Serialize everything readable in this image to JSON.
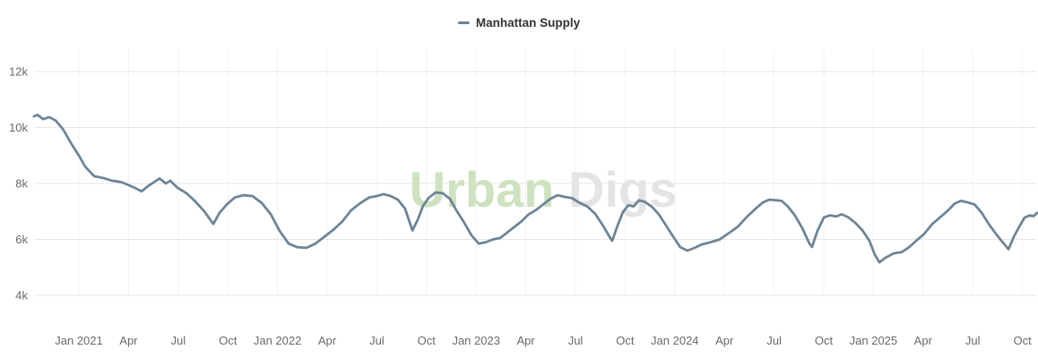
{
  "legend": {
    "label": "Manhattan Supply"
  },
  "watermark": {
    "primary": "Urban",
    "secondary": "Digs"
  },
  "colors": {
    "series": "#6d8496",
    "legend_text": "#333333",
    "axis_label": "#66696e",
    "grid_horizontal": "#e6e6e6",
    "grid_vertical": "#f2f2f2",
    "watermark_primary": "#cde2bf",
    "watermark_secondary": "#e4e4e4",
    "background": "#ffffff"
  },
  "chart_data": {
    "type": "line",
    "title": "",
    "legend_position": "top-center",
    "unit": "listings (k = thousands)",
    "x_axis": {
      "ticks": [
        {
          "label": "Jan 2021",
          "year": 2021.0
        },
        {
          "label": "Apr",
          "year": 2021.25
        },
        {
          "label": "Jul",
          "year": 2021.5
        },
        {
          "label": "Oct",
          "year": 2021.75
        },
        {
          "label": "Jan 2022",
          "year": 2022.0
        },
        {
          "label": "Apr",
          "year": 2022.25
        },
        {
          "label": "Jul",
          "year": 2022.5
        },
        {
          "label": "Oct",
          "year": 2022.75
        },
        {
          "label": "Jan 2023",
          "year": 2023.0
        },
        {
          "label": "Apr",
          "year": 2023.25
        },
        {
          "label": "Jul",
          "year": 2023.5
        },
        {
          "label": "Oct",
          "year": 2023.75
        },
        {
          "label": "Jan 2024",
          "year": 2024.0
        },
        {
          "label": "Apr",
          "year": 2024.25
        },
        {
          "label": "Jul",
          "year": 2024.5
        },
        {
          "label": "Oct",
          "year": 2024.75
        },
        {
          "label": "Jan 2025",
          "year": 2025.0
        },
        {
          "label": "Apr",
          "year": 2025.25
        },
        {
          "label": "Jul",
          "year": 2025.5
        },
        {
          "label": "Oct",
          "year": 2025.75
        }
      ],
      "range_years": [
        2020.774,
        2025.824
      ]
    },
    "y_axis": {
      "ticks": [
        {
          "label": "4k",
          "value": 4000
        },
        {
          "label": "6k",
          "value": 6000
        },
        {
          "label": "8k",
          "value": 8000
        },
        {
          "label": "10k",
          "value": 10000
        },
        {
          "label": "12k",
          "value": 12000
        }
      ],
      "range": [
        4000,
        12000
      ],
      "grid": true
    },
    "series": [
      {
        "name": "Manhattan Supply",
        "color": "#6d8496",
        "points": [
          [
            2020.774,
            10400
          ],
          [
            2020.792,
            10450
          ],
          [
            2020.82,
            10300
          ],
          [
            2020.851,
            10370
          ],
          [
            2020.883,
            10250
          ],
          [
            2020.919,
            9950
          ],
          [
            2020.964,
            9400
          ],
          [
            2021.0,
            9000
          ],
          [
            2021.032,
            8600
          ],
          [
            2021.077,
            8260
          ],
          [
            2021.122,
            8200
          ],
          [
            2021.167,
            8100
          ],
          [
            2021.212,
            8050
          ],
          [
            2021.248,
            7950
          ],
          [
            2021.28,
            7850
          ],
          [
            2021.316,
            7720
          ],
          [
            2021.347,
            7900
          ],
          [
            2021.379,
            8050
          ],
          [
            2021.406,
            8180
          ],
          [
            2021.438,
            8000
          ],
          [
            2021.46,
            8100
          ],
          [
            2021.496,
            7850
          ],
          [
            2021.542,
            7650
          ],
          [
            2021.587,
            7350
          ],
          [
            2021.632,
            7000
          ],
          [
            2021.677,
            6550
          ],
          [
            2021.708,
            6950
          ],
          [
            2021.745,
            7250
          ],
          [
            2021.785,
            7500
          ],
          [
            2021.83,
            7580
          ],
          [
            2021.875,
            7550
          ],
          [
            2021.921,
            7300
          ],
          [
            2021.966,
            6900
          ],
          [
            2022.011,
            6300
          ],
          [
            2022.056,
            5850
          ],
          [
            2022.101,
            5720
          ],
          [
            2022.146,
            5700
          ],
          [
            2022.191,
            5850
          ],
          [
            2022.237,
            6100
          ],
          [
            2022.282,
            6350
          ],
          [
            2022.327,
            6650
          ],
          [
            2022.372,
            7050
          ],
          [
            2022.417,
            7300
          ],
          [
            2022.462,
            7500
          ],
          [
            2022.498,
            7550
          ],
          [
            2022.534,
            7620
          ],
          [
            2022.57,
            7550
          ],
          [
            2022.606,
            7420
          ],
          [
            2022.642,
            7100
          ],
          [
            2022.679,
            6320
          ],
          [
            2022.706,
            6700
          ],
          [
            2022.733,
            7200
          ],
          [
            2022.76,
            7480
          ],
          [
            2022.796,
            7680
          ],
          [
            2022.832,
            7650
          ],
          [
            2022.868,
            7450
          ],
          [
            2022.904,
            7000
          ],
          [
            2022.94,
            6600
          ],
          [
            2022.976,
            6150
          ],
          [
            2023.013,
            5850
          ],
          [
            2023.049,
            5900
          ],
          [
            2023.085,
            6000
          ],
          [
            2023.121,
            6050
          ],
          [
            2023.157,
            6250
          ],
          [
            2023.193,
            6450
          ],
          [
            2023.229,
            6650
          ],
          [
            2023.265,
            6900
          ],
          [
            2023.301,
            7050
          ],
          [
            2023.337,
            7250
          ],
          [
            2023.373,
            7450
          ],
          [
            2023.41,
            7580
          ],
          [
            2023.446,
            7520
          ],
          [
            2023.482,
            7480
          ],
          [
            2023.518,
            7320
          ],
          [
            2023.559,
            7180
          ],
          [
            2023.599,
            6920
          ],
          [
            2023.64,
            6480
          ],
          [
            2023.671,
            6100
          ],
          [
            2023.685,
            5950
          ],
          [
            2023.712,
            6500
          ],
          [
            2023.739,
            6980
          ],
          [
            2023.766,
            7220
          ],
          [
            2023.793,
            7180
          ],
          [
            2023.82,
            7400
          ],
          [
            2023.847,
            7350
          ],
          [
            2023.883,
            7180
          ],
          [
            2023.919,
            6900
          ],
          [
            2023.956,
            6500
          ],
          [
            2023.992,
            6100
          ],
          [
            2024.028,
            5720
          ],
          [
            2024.064,
            5600
          ],
          [
            2024.1,
            5700
          ],
          [
            2024.136,
            5820
          ],
          [
            2024.181,
            5900
          ],
          [
            2024.226,
            6000
          ],
          [
            2024.271,
            6220
          ],
          [
            2024.317,
            6450
          ],
          [
            2024.362,
            6800
          ],
          [
            2024.407,
            7100
          ],
          [
            2024.443,
            7320
          ],
          [
            2024.475,
            7420
          ],
          [
            2024.511,
            7400
          ],
          [
            2024.538,
            7380
          ],
          [
            2024.569,
            7180
          ],
          [
            2024.605,
            6850
          ],
          [
            2024.642,
            6400
          ],
          [
            2024.678,
            5850
          ],
          [
            2024.691,
            5730
          ],
          [
            2024.718,
            6300
          ],
          [
            2024.75,
            6780
          ],
          [
            2024.782,
            6860
          ],
          [
            2024.813,
            6820
          ],
          [
            2024.84,
            6900
          ],
          [
            2024.872,
            6800
          ],
          [
            2024.908,
            6600
          ],
          [
            2024.944,
            6330
          ],
          [
            2024.98,
            5950
          ],
          [
            2025.007,
            5450
          ],
          [
            2025.03,
            5180
          ],
          [
            2025.062,
            5350
          ],
          [
            2025.102,
            5500
          ],
          [
            2025.143,
            5550
          ],
          [
            2025.179,
            5720
          ],
          [
            2025.215,
            5950
          ],
          [
            2025.256,
            6200
          ],
          [
            2025.296,
            6550
          ],
          [
            2025.337,
            6800
          ],
          [
            2025.373,
            7020
          ],
          [
            2025.409,
            7280
          ],
          [
            2025.441,
            7380
          ],
          [
            2025.477,
            7320
          ],
          [
            2025.509,
            7250
          ],
          [
            2025.545,
            6950
          ],
          [
            2025.581,
            6550
          ],
          [
            2025.617,
            6200
          ],
          [
            2025.648,
            5920
          ],
          [
            2025.68,
            5650
          ],
          [
            2025.707,
            6100
          ],
          [
            2025.734,
            6450
          ],
          [
            2025.761,
            6780
          ],
          [
            2025.788,
            6860
          ],
          [
            2025.806,
            6830
          ],
          [
            2025.824,
            6950
          ]
        ]
      }
    ]
  }
}
